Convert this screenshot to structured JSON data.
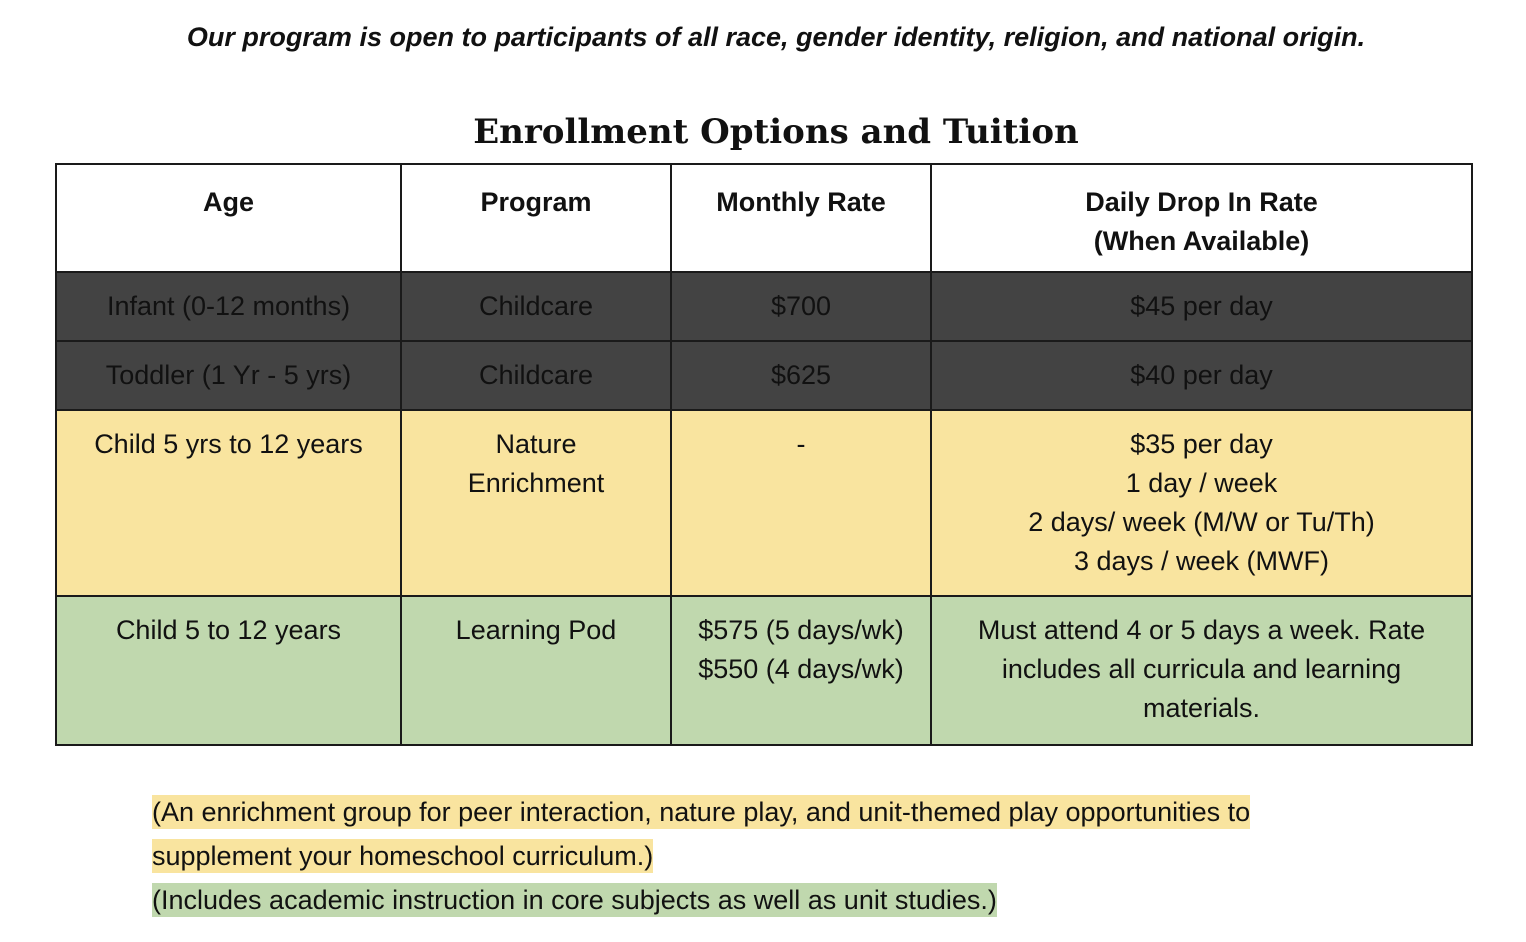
{
  "notice": "Our program is open to participants of all race, gender identity, religion, and national origin.",
  "title": "Enrollment Options and Tuition",
  "colors": {
    "dark_row": "#434343",
    "yellow_row": "#f9e49f",
    "green_row": "#c0d8ae",
    "border": "#1a1a1a"
  },
  "table": {
    "headers": {
      "age": "Age",
      "program": "Program",
      "monthly": "Monthly Rate",
      "daily": "Daily Drop In Rate\n(When Available)"
    },
    "rows": [
      {
        "age": "Infant (0-12 months)",
        "program": "Childcare",
        "monthly": "$700",
        "daily": "$45 per day"
      },
      {
        "age": "Toddler (1 Yr - 5 yrs)",
        "program": "Childcare",
        "monthly": "$625",
        "daily": "$40 per day"
      },
      {
        "age": "Child 5 yrs to 12 years",
        "program": "Nature\nEnrichment",
        "monthly": "-",
        "daily": "$35 per day\n1 day / week\n2 days/ week (M/W or Tu/Th)\n3 days / week (MWF)"
      },
      {
        "age": "Child 5 to 12 years",
        "program": "Learning Pod",
        "monthly": "$575 (5 days/wk)\n$550 (4 days/wk)",
        "daily": "Must attend 4 or 5 days a week. Rate includes all curricula and learning materials."
      }
    ]
  },
  "notes": {
    "enrichment": "(An enrichment group for peer interaction, nature play, and unit-themed play opportunities to supplement your homeschool curriculum.)",
    "pod": "(Includes academic instruction in core subjects as well as unit studies.)"
  }
}
